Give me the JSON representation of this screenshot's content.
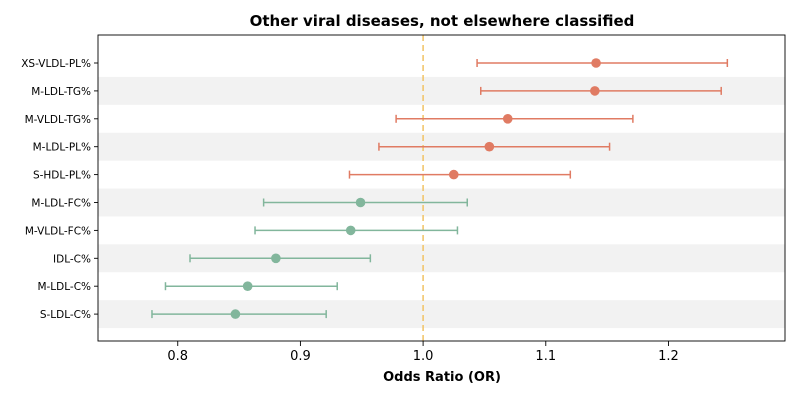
{
  "chart_data": {
    "type": "scatter",
    "title": "Other viral diseases, not elsewhere classified",
    "xlabel": "Odds Ratio (OR)",
    "ylabel": "",
    "xlim": [
      0.735,
      1.295
    ],
    "xticks": [
      "0.8",
      "0.9",
      "1.0",
      "1.1",
      "1.2"
    ],
    "reference_line": 1.0,
    "row_stripes": true,
    "colors": {
      "risk": "#e07b63",
      "protective": "#82b69c",
      "reference": "#f2c66d",
      "stripe": "#f2f2f2"
    },
    "categories": [
      "XS-VLDL-PL%",
      "M-LDL-TG%",
      "M-VLDL-TG%",
      "M-LDL-PL%",
      "S-HDL-PL%",
      "M-LDL-FC%",
      "M-VLDL-FC%",
      "IDL-C%",
      "M-LDL-C%",
      "S-LDL-C%"
    ],
    "or": [
      1.141,
      1.14,
      1.069,
      1.054,
      1.025,
      0.949,
      0.941,
      0.88,
      0.857,
      0.847
    ],
    "ci_low": [
      1.044,
      1.047,
      0.978,
      0.964,
      0.94,
      0.87,
      0.863,
      0.81,
      0.79,
      0.779
    ],
    "ci_high": [
      1.248,
      1.243,
      1.171,
      1.152,
      1.12,
      1.036,
      1.028,
      0.957,
      0.93,
      0.921
    ]
  }
}
